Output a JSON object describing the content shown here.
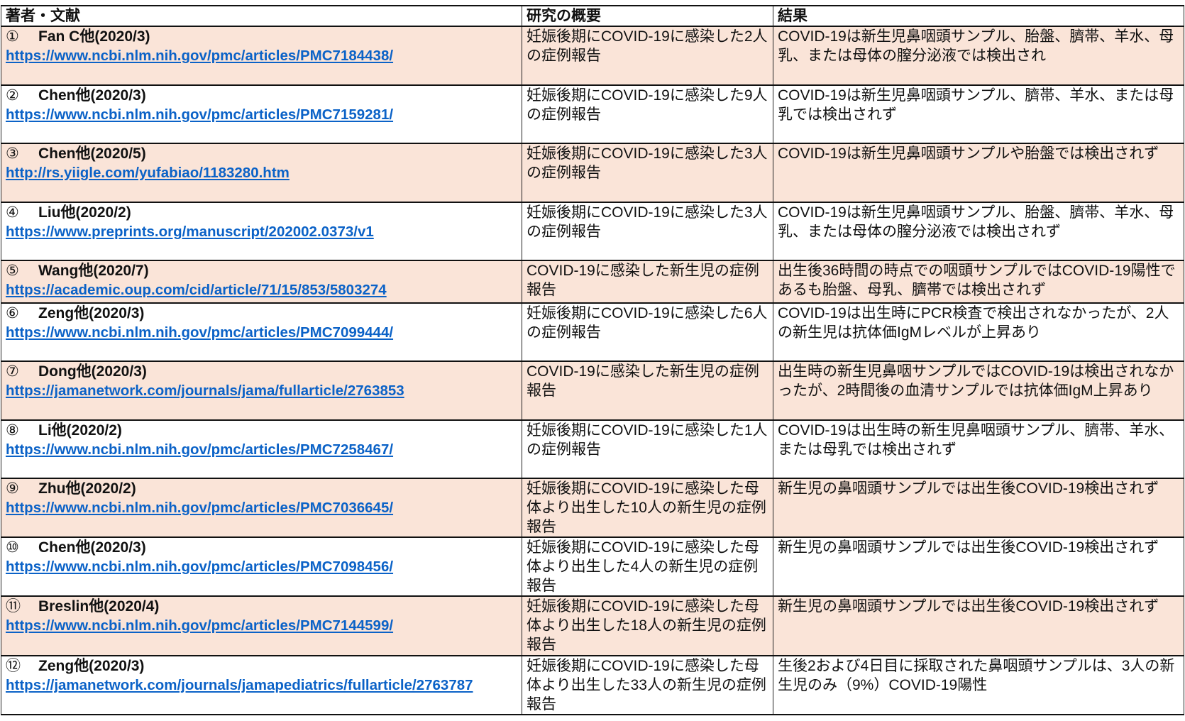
{
  "header": {
    "col1": "著者・文献",
    "col2": "研究の概要",
    "col3": "結果"
  },
  "rows": [
    {
      "num": "①",
      "author": "Fan C他(2020/3)",
      "url": "https://www.ncbi.nlm.nih.gov/pmc/articles/PMC7184438/",
      "summary": "妊娠後期にCOVID-19に感染した2人の症例報告",
      "result": "COVID-19は新生児鼻咽頭サンプル、胎盤、臍帯、羊水、母乳、または母体の膣分泌液では検出され"
    },
    {
      "num": "②",
      "author": "Chen他(2020/3)",
      "url": "https://www.ncbi.nlm.nih.gov/pmc/articles/PMC7159281/",
      "summary": "妊娠後期にCOVID-19に感染した9人の症例報告",
      "result": "COVID-19は新生児鼻咽頭サンプル、臍帯、羊水、または母乳では検出されず"
    },
    {
      "num": "③",
      "author": "Chen他(2020/5)",
      "url": "http://rs.yiigle.com/yufabiao/1183280.htm",
      "summary": "妊娠後期にCOVID-19に感染した3人の症例報告",
      "result": "COVID-19は新生児鼻咽頭サンプルや胎盤では検出されず"
    },
    {
      "num": "④",
      "author": "Liu他(2020/2)",
      "url": "https://www.preprints.org/manuscript/202002.0373/v1",
      "summary": "妊娠後期にCOVID-19に感染した3人の症例報告",
      "result": "COVID-19は新生児鼻咽頭サンプル、胎盤、臍帯、羊水、母乳、または母体の膣分泌液では検出されず"
    },
    {
      "num": "⑤",
      "author": "Wang他(2020/7)",
      "url": "https://academic.oup.com/cid/article/71/15/853/5803274",
      "summary": "COVID-19に感染した新生児の症例報告",
      "result": "出生後36時間の時点での咽頭サンプルではCOVID-19陽性であるも胎盤、母乳、臍帯では検出されず"
    },
    {
      "num": "⑥",
      "author": "Zeng他(2020/3)",
      "url": "https://www.ncbi.nlm.nih.gov/pmc/articles/PMC7099444/",
      "summary": "妊娠後期にCOVID-19に感染した6人の症例報告",
      "result": "COVID-19は出生時にPCR検査で検出されなかったが、2人の新生児は抗体価IgMレベルが上昇あり"
    },
    {
      "num": "⑦",
      "author": "Dong他(2020/3)",
      "url": "https://jamanetwork.com/journals/jama/fullarticle/2763853",
      "summary": "COVID-19に感染した新生児の症例報告",
      "result": "出生時の新生児鼻咽サンプルではCOVID-19は検出されなかったが、2時間後の血清サンプルでは抗体価IgM上昇あり"
    },
    {
      "num": "⑧",
      "author": "Li他(2020/2)",
      "url": "https://www.ncbi.nlm.nih.gov/pmc/articles/PMC7258467/",
      "summary": "妊娠後期にCOVID-19に感染した1人の症例報告",
      "result": "COVID-19は出生時の新生児鼻咽頭サンプル、臍帯、羊水、または母乳では検出されず"
    },
    {
      "num": "⑨",
      "author": "Zhu他(2020/2)",
      "url": "https://www.ncbi.nlm.nih.gov/pmc/articles/PMC7036645/",
      "summary": "妊娠後期にCOVID-19に感染した母体より出生した10人の新生児の症例報告",
      "result": "新生児の鼻咽頭サンプルでは出生後COVID-19検出されず"
    },
    {
      "num": "⑩",
      "author": "Chen他(2020/3)",
      "url": "https://www.ncbi.nlm.nih.gov/pmc/articles/PMC7098456/",
      "summary": "妊娠後期にCOVID-19に感染した母体より出生した4人の新生児の症例報告",
      "result": "新生児の鼻咽頭サンプルでは出生後COVID-19検出されず"
    },
    {
      "num": "⑪",
      "author": "Breslin他(2020/4)",
      "url": "https://www.ncbi.nlm.nih.gov/pmc/articles/PMC7144599/",
      "summary": "妊娠後期にCOVID-19に感染した母体より出生した18人の新生児の症例報告",
      "result": "新生児の鼻咽頭サンプルでは出生後COVID-19検出されず"
    },
    {
      "num": "⑫",
      "author": "Zeng他(2020/3)",
      "url": "https://jamanetwork.com/journals/jamapediatrics/fullarticle/2763787",
      "summary": "妊娠後期にCOVID-19に感染した母体より出生した33人の新生児の症例報告",
      "result": "生後2および4日目に採取された鼻咽頭サンプルは、3人の新生児のみ（9%）COVID-19陽性"
    }
  ],
  "colors": {
    "shaded_row": "#fae4d8",
    "link": "#0b62c7",
    "border": "#222222"
  }
}
